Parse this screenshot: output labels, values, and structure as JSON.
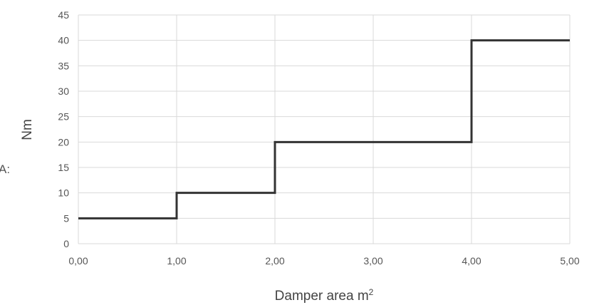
{
  "side_fragment": "A:",
  "chart_data": {
    "type": "line",
    "step": true,
    "title": "",
    "xlabel": "Damper area m",
    "xlabel_superscript": "2",
    "ylabel": "Nm",
    "xlim": [
      0,
      5
    ],
    "ylim": [
      0,
      45
    ],
    "x_ticks": [
      0,
      1,
      2,
      3,
      4,
      5
    ],
    "x_tick_labels": [
      "0,00",
      "1,00",
      "2,00",
      "3,00",
      "4,00",
      "5,00"
    ],
    "y_ticks": [
      0,
      5,
      10,
      15,
      20,
      25,
      30,
      35,
      40,
      45
    ],
    "y_tick_labels": [
      "0",
      "5",
      "10",
      "15",
      "20",
      "25",
      "30",
      "35",
      "40",
      "45"
    ],
    "grid": true,
    "legend": "none",
    "series": [
      {
        "x": [
          0,
          1,
          1,
          2,
          2,
          4,
          4,
          5
        ],
        "y": [
          5,
          5,
          10,
          10,
          20,
          20,
          40,
          40
        ],
        "color": "#333333"
      }
    ],
    "colors": {
      "grid": "#d9d9d9",
      "line": "#333333",
      "text": "#555555"
    }
  }
}
